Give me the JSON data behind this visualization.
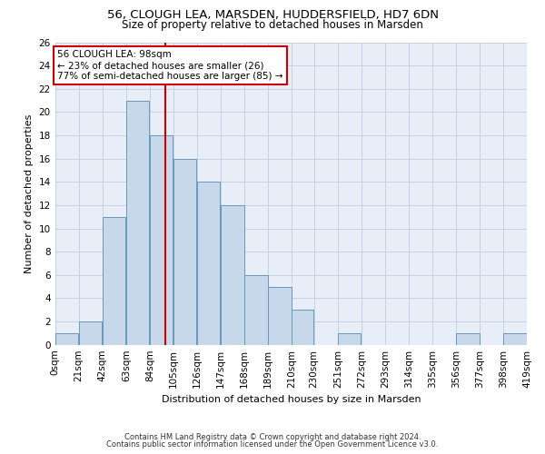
{
  "title1": "56, CLOUGH LEA, MARSDEN, HUDDERSFIELD, HD7 6DN",
  "title2": "Size of property relative to detached houses in Marsden",
  "xlabel": "Distribution of detached houses by size in Marsden",
  "ylabel": "Number of detached properties",
  "bar_counts": [
    1,
    2,
    11,
    21,
    18,
    16,
    14,
    12,
    6,
    5,
    3,
    0,
    1,
    0,
    0,
    0,
    0,
    1,
    0,
    1
  ],
  "bin_labels": [
    "0sqm",
    "21sqm",
    "42sqm",
    "63sqm",
    "84sqm",
    "105sqm",
    "126sqm",
    "147sqm",
    "168sqm",
    "189sqm",
    "210sqm",
    "230sqm",
    "251sqm",
    "272sqm",
    "293sqm",
    "314sqm",
    "335sqm",
    "356sqm",
    "377sqm",
    "398sqm",
    "419sqm"
  ],
  "bin_edges": [
    0,
    21,
    42,
    63,
    84,
    105,
    126,
    147,
    168,
    189,
    210,
    230,
    251,
    272,
    293,
    314,
    335,
    356,
    377,
    398,
    419
  ],
  "bar_color": "#c8d8eb",
  "bar_edgecolor": "#6699bb",
  "vline_x": 98,
  "vline_color": "#cc0000",
  "ylim": [
    0,
    26
  ],
  "yticks": [
    0,
    2,
    4,
    6,
    8,
    10,
    12,
    14,
    16,
    18,
    20,
    22,
    24,
    26
  ],
  "annotation_text": "56 CLOUGH LEA: 98sqm\n← 23% of detached houses are smaller (26)\n77% of semi-detached houses are larger (85) →",
  "annotation_box_facecolor": "#ffffff",
  "annotation_box_edgecolor": "#cc0000",
  "bg_color": "#e8eef8",
  "grid_color": "#c0cce0",
  "footnote1": "Contains HM Land Registry data © Crown copyright and database right 2024.",
  "footnote2": "Contains public sector information licensed under the Open Government Licence v3.0.",
  "title1_fontsize": 9.5,
  "title2_fontsize": 8.5,
  "ylabel_fontsize": 8,
  "xlabel_fontsize": 8,
  "tick_fontsize": 7.5,
  "annot_fontsize": 7.5,
  "footnote_fontsize": 6
}
